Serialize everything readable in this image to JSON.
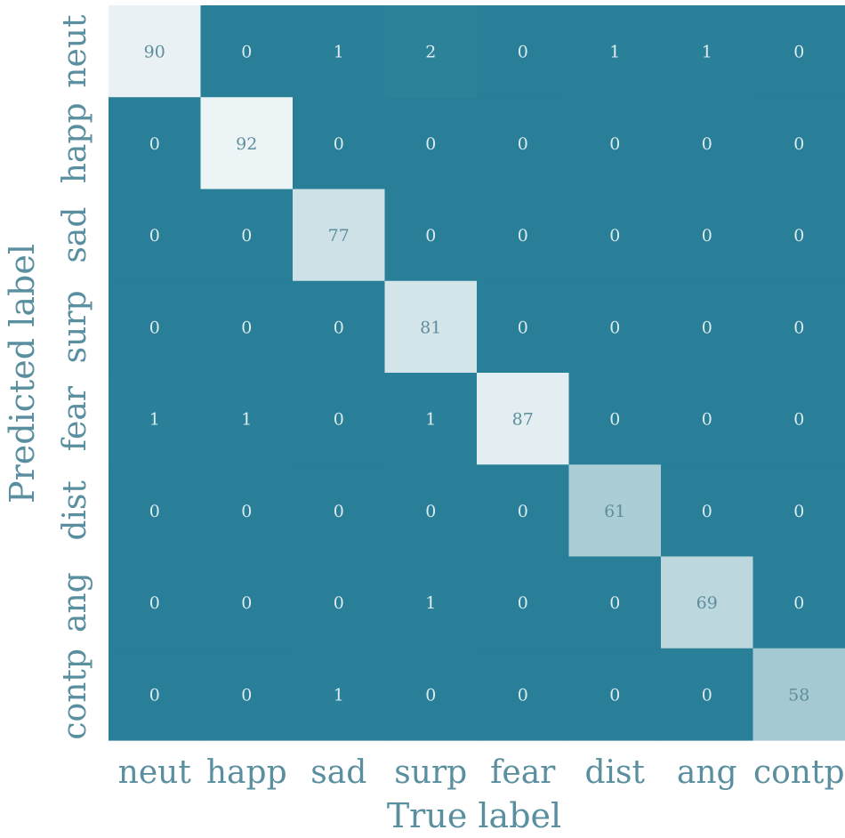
{
  "chart_data": {
    "type": "heatmap",
    "xlabel": "True label",
    "ylabel": "Predicted label",
    "x_categories": [
      "neut",
      "happ",
      "sad",
      "surp",
      "fear",
      "dist",
      "ang",
      "contp"
    ],
    "y_categories": [
      "neut",
      "happ",
      "sad",
      "surp",
      "fear",
      "dist",
      "ang",
      "contp"
    ],
    "values": [
      [
        90,
        0,
        1,
        2,
        0,
        1,
        1,
        0
      ],
      [
        0,
        92,
        0,
        0,
        0,
        0,
        0,
        0
      ],
      [
        0,
        0,
        77,
        0,
        0,
        0,
        0,
        0
      ],
      [
        0,
        0,
        0,
        81,
        0,
        0,
        0,
        0
      ],
      [
        1,
        1,
        0,
        1,
        87,
        0,
        0,
        0
      ],
      [
        0,
        0,
        0,
        0,
        0,
        61,
        0,
        0
      ],
      [
        0,
        0,
        0,
        1,
        0,
        0,
        69,
        0
      ],
      [
        0,
        0,
        1,
        0,
        0,
        0,
        0,
        58
      ]
    ],
    "value_range": [
      0,
      92
    ],
    "colors": {
      "low": "#287f97",
      "high": "#edf4f6",
      "label_text": "#5a8fa0",
      "cell_text": "#dcebef"
    }
  }
}
